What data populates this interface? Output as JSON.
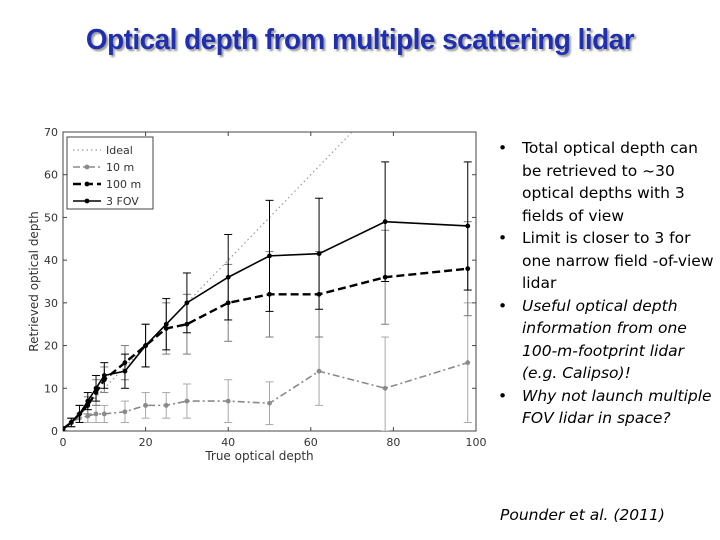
{
  "slide": {
    "title": "Optical depth from multiple scattering lidar",
    "citation": "Pounder et al. (2011)"
  },
  "bullets": [
    {
      "text": "Total optical depth can be retrieved to ~30 optical depths with 3 fields of view",
      "italic": false
    },
    {
      "text": "Limit is closer to 3 for one narrow field -of-view lidar",
      "italic": false
    },
    {
      "text": "Useful optical depth information from one 100-m-footprint lidar (e.g. Calipso)!",
      "italic": true
    },
    {
      "text": "Why not launch multiple FOV lidar in space?",
      "italic": true
    }
  ],
  "chart_data": {
    "type": "line",
    "xlabel": "True optical depth",
    "ylabel": "Retrieved optical depth",
    "xlim": [
      0,
      100
    ],
    "ylim": [
      0,
      70
    ],
    "x_ticks": [
      "0",
      "20",
      "40",
      "60",
      "80",
      "100"
    ],
    "y_ticks": [
      "0",
      "10",
      "20",
      "30",
      "40",
      "50",
      "60",
      "70"
    ],
    "legend_position": "top-left",
    "series": [
      {
        "name": "Ideal",
        "style": "dotted",
        "color": "#9a9a9a",
        "x": [
          0,
          100
        ],
        "y": [
          0,
          100
        ],
        "yerr": []
      },
      {
        "name": "10 m",
        "style": "dashdot",
        "color": "#8a8a8a",
        "x": [
          0,
          2,
          4,
          6,
          8,
          10,
          15,
          20,
          25,
          30,
          40,
          50,
          62,
          78,
          98
        ],
        "y": [
          0.5,
          2,
          3,
          3.5,
          4,
          4,
          4.5,
          6,
          6,
          7,
          7,
          6.5,
          14,
          10,
          16
        ],
        "yerr": [
          0.5,
          1,
          1,
          1.5,
          2,
          2,
          2.5,
          3,
          3,
          4,
          5,
          5,
          8,
          12,
          14
        ]
      },
      {
        "name": "100 m",
        "style": "dashed",
        "color": "#000000",
        "x": [
          0,
          2,
          4,
          6,
          8,
          10,
          15,
          20,
          25,
          30,
          40,
          50,
          62,
          78,
          98
        ],
        "y": [
          0.5,
          2,
          4,
          6,
          9,
          12,
          16,
          20,
          24,
          25,
          30,
          32,
          32,
          36,
          38
        ],
        "yerr": [
          0.5,
          1,
          2,
          2,
          3,
          3,
          4,
          5,
          6,
          7,
          9,
          10,
          10,
          11,
          11
        ]
      },
      {
        "name": "3 FOV",
        "style": "solid",
        "color": "#000000",
        "x": [
          0,
          2,
          4,
          6,
          8,
          10,
          15,
          20,
          25,
          30,
          40,
          50,
          62,
          78,
          98
        ],
        "y": [
          0.5,
          2,
          4,
          7,
          10,
          13,
          14,
          20,
          25,
          30,
          36,
          41,
          41.5,
          49,
          48
        ],
        "yerr": [
          0.5,
          1,
          2,
          2,
          3,
          3,
          4,
          5,
          6,
          7,
          10,
          13,
          13,
          14,
          15
        ]
      }
    ]
  }
}
